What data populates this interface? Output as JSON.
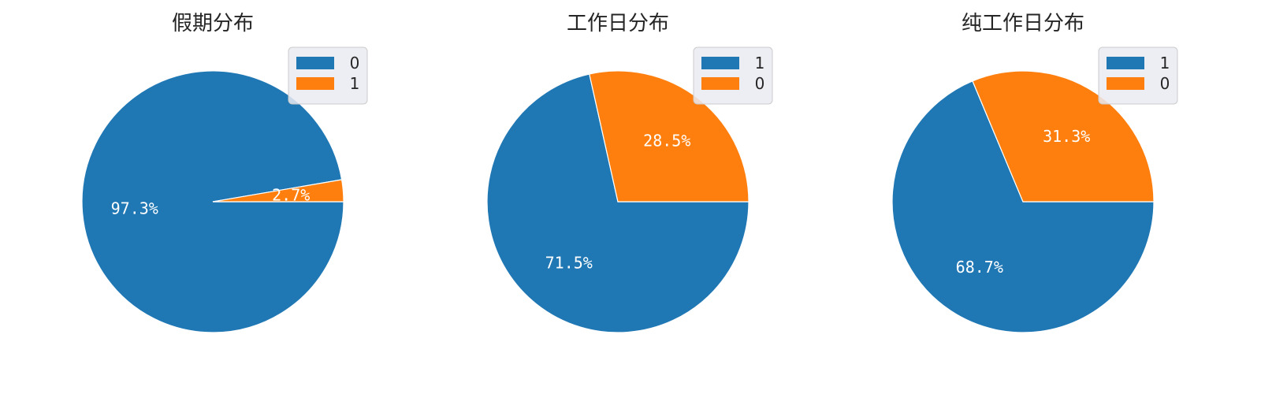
{
  "chart_data": [
    {
      "type": "pie",
      "title": "假期分布",
      "labels": [
        "0",
        "1"
      ],
      "values": [
        97.3,
        2.7
      ],
      "value_labels": [
        "97.3%",
        "2.7%"
      ],
      "colors": [
        "#1f77b4",
        "#ff7f0e"
      ],
      "legend": "top-right"
    },
    {
      "type": "pie",
      "title": "工作日分布",
      "labels": [
        "1",
        "0"
      ],
      "values": [
        71.5,
        28.5
      ],
      "value_labels": [
        "71.5%",
        "28.5%"
      ],
      "colors": [
        "#1f77b4",
        "#ff7f0e"
      ],
      "legend": "top-right"
    },
    {
      "type": "pie",
      "title": "纯工作日分布",
      "labels": [
        "1",
        "0"
      ],
      "values": [
        68.7,
        31.3
      ],
      "value_labels": [
        "68.7%",
        "31.3%"
      ],
      "colors": [
        "#1f77b4",
        "#ff7f0e"
      ],
      "legend": "top-right"
    }
  ]
}
